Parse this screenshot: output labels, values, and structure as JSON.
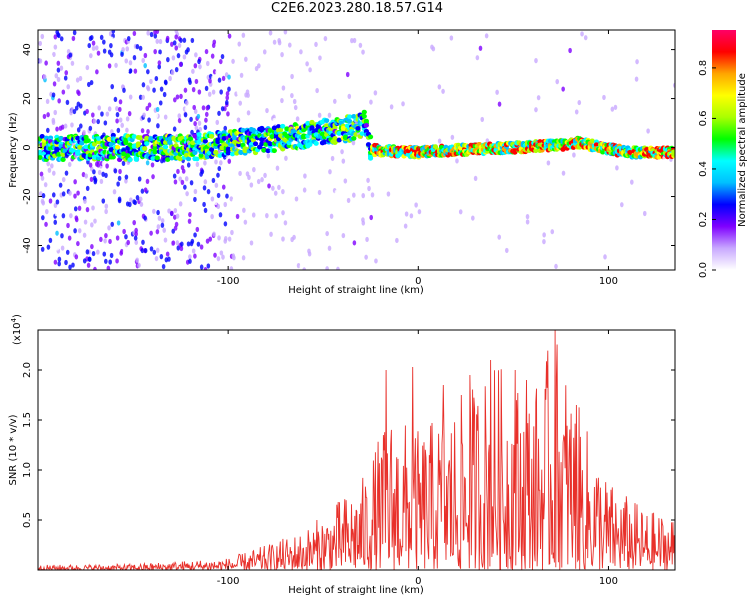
{
  "title": "C2E6.2023.280.18.57.G14",
  "chart_data": [
    {
      "type": "heatmap",
      "name": "spectrogram",
      "xlabel": "Height of straight line (km)",
      "ylabel": "Frequency (Hz)",
      "xlim": [
        -200,
        135
      ],
      "ylim": [
        -50,
        48
      ],
      "xticks": [
        -100,
        0,
        100
      ],
      "yticks": [
        -40,
        -20,
        0,
        20,
        40
      ],
      "colorbar": {
        "label": "Normalized spectral amplitude",
        "range": [
          0,
          0.95
        ],
        "ticks": [
          "0.0",
          "0.2",
          "0.4",
          "0.6",
          "0.8"
        ],
        "colors": [
          "#ffffff",
          "#c8a8ff",
          "#7f00ff",
          "#0000ff",
          "#00bfff",
          "#00ffff",
          "#00ff00",
          "#aaff00",
          "#ffff00",
          "#ffa500",
          "#ff0000",
          "#ff0066"
        ]
      },
      "band_center_hz": [
        {
          "x": -200,
          "y": 0
        },
        {
          "x": -120,
          "y": 0
        },
        {
          "x": -60,
          "y": 5
        },
        {
          "x": -35,
          "y": 8
        },
        {
          "x": -28,
          "y": 10
        },
        {
          "x": -25,
          "y": -1
        },
        {
          "x": 0,
          "y": -2
        },
        {
          "x": 20,
          "y": -1
        },
        {
          "x": 50,
          "y": 0
        },
        {
          "x": 75,
          "y": 1
        },
        {
          "x": 85,
          "y": 2
        },
        {
          "x": 110,
          "y": -2
        },
        {
          "x": 135,
          "y": -2
        }
      ]
    },
    {
      "type": "line",
      "name": "snr",
      "xlabel": "Height of straight line (km)",
      "ylabel": "SNR (10 * v/v)",
      "yexponent_label": "(x10",
      "yexponent": "4",
      "xlim": [
        -200,
        135
      ],
      "ylim": [
        0,
        24000
      ],
      "xticks": [
        -100,
        0,
        100
      ],
      "yticks": [
        0.5,
        1.0,
        1.5,
        2.0
      ],
      "ytick_labels": [
        "0.5",
        "1.0",
        "1.5",
        "2.0"
      ],
      "color": "#e8302a",
      "envelope": [
        {
          "x": -200,
          "y": 500
        },
        {
          "x": -150,
          "y": 600
        },
        {
          "x": -100,
          "y": 1200
        },
        {
          "x": -80,
          "y": 2500
        },
        {
          "x": -60,
          "y": 4000
        },
        {
          "x": -45,
          "y": 6500
        },
        {
          "x": -30,
          "y": 9000
        },
        {
          "x": -15,
          "y": 16000
        },
        {
          "x": 0,
          "y": 14000
        },
        {
          "x": 20,
          "y": 17000
        },
        {
          "x": 40,
          "y": 21000
        },
        {
          "x": 60,
          "y": 18000
        },
        {
          "x": 72,
          "y": 24000
        },
        {
          "x": 85,
          "y": 16000
        },
        {
          "x": 100,
          "y": 9000
        },
        {
          "x": 120,
          "y": 6000
        },
        {
          "x": 135,
          "y": 5500
        }
      ],
      "peaks": [
        {
          "x": -17,
          "y": 20000
        },
        {
          "x": -3,
          "y": 20300
        },
        {
          "x": 13,
          "y": 18500
        },
        {
          "x": 27,
          "y": 19500
        },
        {
          "x": 38,
          "y": 21000
        },
        {
          "x": 51,
          "y": 20000
        },
        {
          "x": 57,
          "y": 19000
        },
        {
          "x": 72,
          "y": 24000
        },
        {
          "x": 83,
          "y": 16500
        }
      ]
    }
  ]
}
